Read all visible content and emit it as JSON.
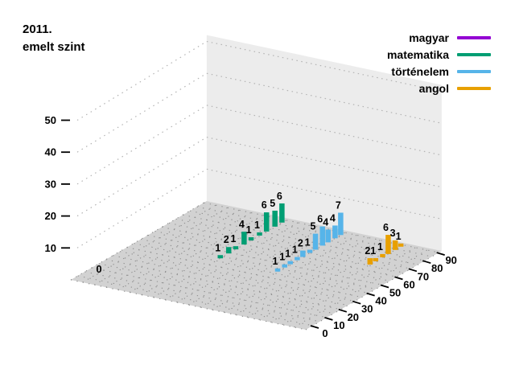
{
  "title": {
    "line1": "2011.",
    "line2": "emelt szint"
  },
  "legend": [
    {
      "label": "magyar",
      "color": "#9400d3"
    },
    {
      "label": "matematika",
      "color": "#009e73"
    },
    {
      "label": "történelem",
      "color": "#56b4e9"
    },
    {
      "label": "angol",
      "color": "#e8a000"
    }
  ],
  "chart_data": {
    "type": "bar",
    "projection": "3d",
    "title": "2011. emelt szint",
    "x_axis": {
      "ticks": [
        0,
        10,
        20,
        30,
        40,
        50,
        60,
        70,
        80,
        90
      ],
      "range": [
        0,
        97
      ]
    },
    "z_axis": {
      "ticks": [
        10,
        20,
        30,
        40,
        50
      ],
      "range": [
        0,
        52
      ]
    },
    "depth_axis": {
      "origin_label": "0",
      "rows": [
        "magyar",
        "matematika",
        "történelem",
        "angol"
      ]
    },
    "series": [
      {
        "name": "magyar",
        "color": "#9400d3",
        "row": 1,
        "points": []
      },
      {
        "name": "matematika",
        "color": "#009e73",
        "row": 2,
        "points": [
          {
            "x": 48,
            "count": 1
          },
          {
            "x": 54,
            "count": 2
          },
          {
            "x": 59,
            "count": 1
          },
          {
            "x": 65,
            "count": 4
          },
          {
            "x": 70,
            "count": 1
          },
          {
            "x": 76,
            "count": 1
          },
          {
            "x": 81,
            "count": 6
          },
          {
            "x": 87,
            "count": 5
          },
          {
            "x": 92,
            "count": 6
          }
        ]
      },
      {
        "name": "történelem",
        "color": "#56b4e9",
        "row": 3,
        "points": [
          {
            "x": 47,
            "count": 1
          },
          {
            "x": 52,
            "count": 1
          },
          {
            "x": 56,
            "count": 1
          },
          {
            "x": 61,
            "count": 1
          },
          {
            "x": 65,
            "count": 2
          },
          {
            "x": 70,
            "count": 1
          },
          {
            "x": 74,
            "count": 5
          },
          {
            "x": 79,
            "count": 6
          },
          {
            "x": 83,
            "count": 4
          },
          {
            "x": 88,
            "count": 4
          },
          {
            "x": 92,
            "count": 7
          }
        ]
      },
      {
        "name": "angol",
        "color": "#e8a000",
        "row": 4,
        "points": [
          {
            "x": 71,
            "count": 2
          },
          {
            "x": 75,
            "count": 1
          },
          {
            "x": 80,
            "count": 1
          },
          {
            "x": 84,
            "count": 6
          },
          {
            "x": 89,
            "count": 3
          },
          {
            "x": 93,
            "count": 1
          }
        ]
      }
    ]
  }
}
